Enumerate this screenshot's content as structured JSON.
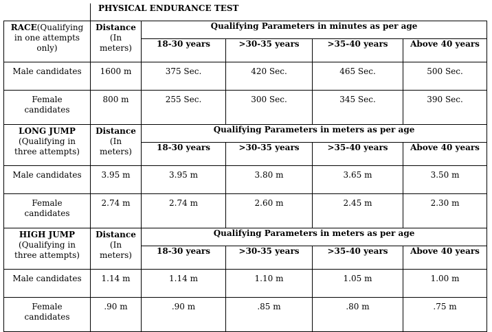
{
  "title": "PHYSICAL ENDURANCE TEST",
  "age_groups": [
    "18-30 years",
    ">30-35 years",
    ">35-40 years",
    "Above 40 years"
  ],
  "sections": [
    {
      "event": "RACE",
      "event_note_line1": "(Qualifying",
      "event_note_line2": "in one attempts",
      "event_note_line3": "only)",
      "distance_head_line1": "Distance",
      "distance_head_line2": "(In",
      "distance_head_line3": "meters)",
      "params_title": "Qualifying Parameters in minutes as per age",
      "rows": [
        {
          "label_line1": "Male candidates",
          "label_line2": "",
          "distance": "1600 m",
          "values": [
            "375 Sec.",
            "420 Sec.",
            "465 Sec.",
            "500 Sec."
          ]
        },
        {
          "label_line1": "Female",
          "label_line2": "candidates",
          "distance": "800 m",
          "values": [
            "255 Sec.",
            "300 Sec.",
            "345 Sec.",
            "390 Sec."
          ]
        }
      ]
    },
    {
      "event": "LONG JUMP",
      "event_note_line1": "(Qualifying in",
      "event_note_line2": "three attempts)",
      "event_note_line3": "",
      "distance_head_line1": "Distance",
      "distance_head_line2": "(In",
      "distance_head_line3": "meters)",
      "params_title": "Qualifying Parameters in meters as per age",
      "rows": [
        {
          "label_line1": "Male candidates",
          "label_line2": "",
          "distance": "3.95 m",
          "values": [
            "3.95 m",
            "3.80 m",
            "3.65 m",
            "3.50 m"
          ]
        },
        {
          "label_line1": "Female",
          "label_line2": "candidates",
          "distance": "2.74 m",
          "values": [
            "2.74 m",
            "2.60 m",
            "2.45 m",
            "2.30 m"
          ]
        }
      ]
    },
    {
      "event": "HIGH JUMP",
      "event_note_line1": "(Qualifying in",
      "event_note_line2": "three attempts)",
      "event_note_line3": "",
      "distance_head_line1": "Distance",
      "distance_head_line2": "(In",
      "distance_head_line3": "meters)",
      "params_title": "Qualifying Parameters in meters as per age",
      "rows": [
        {
          "label_line1": "Male candidates",
          "label_line2": "",
          "distance": "1.14 m",
          "values": [
            "1.14 m",
            "1.10 m",
            "1.05 m",
            "1.00 m"
          ]
        },
        {
          "label_line1": "Female",
          "label_line2": "candidates",
          "distance": ".90 m",
          "values": [
            ".90 m",
            ".85 m",
            ".80 m",
            ".75 m"
          ]
        }
      ]
    }
  ]
}
